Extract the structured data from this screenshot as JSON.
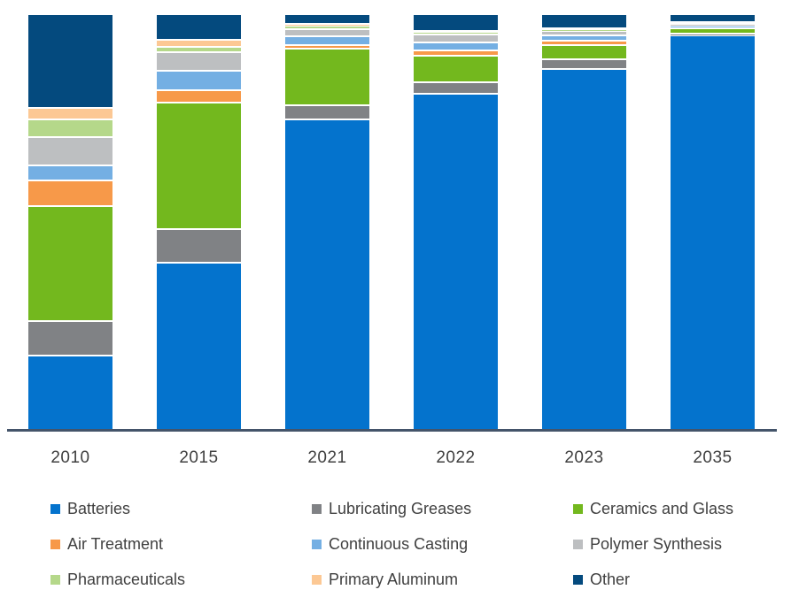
{
  "chart_data": {
    "type": "bar",
    "variant": "stacked-100-percent",
    "title": "",
    "xlabel": "",
    "ylabel": "",
    "grid": false,
    "legend_position": "bottom",
    "categories": [
      "2010",
      "2015",
      "2021",
      "2022",
      "2023",
      "2035"
    ],
    "stack_order_bottom_to_top": [
      "Batteries",
      "Lubricating Greases",
      "Ceramics and Glass",
      "Air Treatment",
      "Continuous Casting",
      "Polymer Synthesis",
      "Pharmaceuticals",
      "Primary Aluminum",
      "Other"
    ],
    "value_unit": "percent-share",
    "series": [
      {
        "name": "Batteries",
        "color": "#0473cd",
        "values": [
          17.5,
          40.0,
          74.8,
          80.7,
          86.8,
          94.8
        ]
      },
      {
        "name": "Lubricating Greases",
        "color": "#808285",
        "values": [
          8.3,
          8.1,
          3.3,
          2.9,
          2.3,
          0.6
        ]
      },
      {
        "name": "Ceramics and Glass",
        "color": "#73b81e",
        "values": [
          27.9,
          30.6,
          13.7,
          6.4,
          3.6,
          1.2
        ]
      },
      {
        "name": "Air Treatment",
        "color": "#f79949",
        "values": [
          6.1,
          3.1,
          0.9,
          1.1,
          1.1,
          0.2
        ]
      },
      {
        "name": "Continuous Casting",
        "color": "#74afe3",
        "values": [
          3.7,
          4.6,
          2.1,
          2.0,
          1.1,
          0.5
        ]
      },
      {
        "name": "Polymer Synthesis",
        "color": "#bdbfc1",
        "values": [
          6.8,
          4.4,
          1.8,
          2.0,
          1.2,
          0.3
        ]
      },
      {
        "name": "Pharmaceuticals",
        "color": "#b5d88a",
        "values": [
          4.2,
          1.4,
          0.9,
          0.65,
          0.4,
          0.3
        ]
      },
      {
        "name": "Primary Aluminum",
        "color": "#fcc894",
        "values": [
          2.9,
          1.6,
          0.3,
          0.2,
          0.2,
          0.1
        ]
      },
      {
        "name": "Other",
        "color": "#044a7e",
        "values": [
          22.6,
          6.3,
          2.4,
          4.0,
          3.4,
          1.9
        ]
      }
    ]
  },
  "colors": {
    "axis_line": "#44546a",
    "text": "#404040",
    "segment_gap": "#ffffff",
    "background": "#ffffff"
  }
}
